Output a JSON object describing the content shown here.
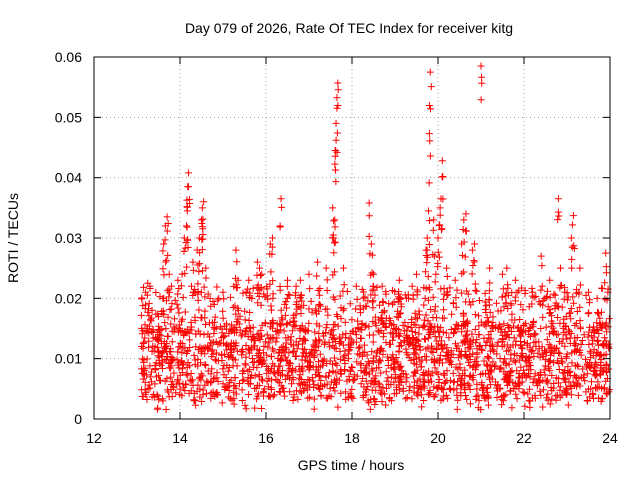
{
  "chart_data": {
    "type": "scatter",
    "title": "Day 079 of 2026, Rate Of TEC Index for receiver kitg",
    "xlabel": "GPS time / hours",
    "ylabel": "ROTI / TECUs",
    "xlim": [
      12,
      24
    ],
    "ylim": [
      0,
      0.06
    ],
    "xticks": [
      "12",
      "14",
      "16",
      "18",
      "20",
      "22",
      "24"
    ],
    "yticks": [
      "0",
      "0.01",
      "0.02",
      "0.03",
      "0.04",
      "0.05",
      "0.06"
    ],
    "grid": true,
    "marker": "plus",
    "marker_color": "#ff0000",
    "series": [
      {
        "name": "ROTI",
        "points": [
          [
            13.2,
            0.021
          ],
          [
            13.25,
            0.0225
          ],
          [
            13.3,
            0.022
          ],
          [
            13.35,
            0.018
          ],
          [
            13.5,
            0.017
          ],
          [
            13.6,
            0.02
          ],
          [
            13.62,
            0.029
          ],
          [
            13.66,
            0.032
          ],
          [
            13.7,
            0.0335
          ],
          [
            13.75,
            0.024
          ],
          [
            13.8,
            0.022
          ],
          [
            13.95,
            0.023
          ],
          [
            14.05,
            0.024
          ],
          [
            14.1,
            0.03
          ],
          [
            14.15,
            0.032
          ],
          [
            14.17,
            0.0345
          ],
          [
            14.18,
            0.0385
          ],
          [
            14.2,
            0.0408
          ],
          [
            14.3,
            0.026
          ],
          [
            14.4,
            0.028
          ],
          [
            14.45,
            0.03
          ],
          [
            14.5,
            0.033
          ],
          [
            14.52,
            0.035
          ],
          [
            14.55,
            0.036
          ],
          [
            14.6,
            0.025
          ],
          [
            14.7,
            0.02
          ],
          [
            14.8,
            0.019
          ],
          [
            15.0,
            0.021
          ],
          [
            15.3,
            0.028
          ],
          [
            15.35,
            0.023
          ],
          [
            15.6,
            0.023
          ],
          [
            15.8,
            0.026
          ],
          [
            15.85,
            0.025
          ],
          [
            15.9,
            0.024
          ],
          [
            16.1,
            0.029
          ],
          [
            16.15,
            0.03
          ],
          [
            16.35,
            0.0365
          ],
          [
            16.5,
            0.023
          ],
          [
            16.7,
            0.022
          ],
          [
            16.8,
            0.023
          ],
          [
            17.0,
            0.024
          ],
          [
            17.2,
            0.026
          ],
          [
            17.4,
            0.025
          ],
          [
            17.55,
            0.035
          ],
          [
            17.57,
            0.03
          ],
          [
            17.6,
            0.033
          ],
          [
            17.62,
            0.0445
          ],
          [
            17.63,
            0.0462
          ],
          [
            17.65,
            0.0515
          ],
          [
            17.67,
            0.0557
          ],
          [
            17.8,
            0.025
          ],
          [
            18.1,
            0.022
          ],
          [
            18.4,
            0.0358
          ],
          [
            18.45,
            0.029
          ],
          [
            18.5,
            0.024
          ],
          [
            18.7,
            0.022
          ],
          [
            19.1,
            0.023
          ],
          [
            19.4,
            0.022
          ],
          [
            19.5,
            0.024
          ],
          [
            19.7,
            0.02
          ],
          [
            19.72,
            0.028
          ],
          [
            19.75,
            0.03
          ],
          [
            19.78,
            0.0345
          ],
          [
            19.8,
            0.0473
          ],
          [
            19.82,
            0.0575
          ],
          [
            19.9,
            0.033
          ],
          [
            19.95,
            0.024
          ],
          [
            20.0,
            0.03
          ],
          [
            20.05,
            0.035
          ],
          [
            20.07,
            0.0365
          ],
          [
            20.1,
            0.0428
          ],
          [
            20.2,
            0.025
          ],
          [
            20.4,
            0.023
          ],
          [
            20.55,
            0.029
          ],
          [
            20.6,
            0.033
          ],
          [
            20.65,
            0.034
          ],
          [
            20.8,
            0.028
          ],
          [
            20.85,
            0.029
          ],
          [
            21.0,
            0.0585
          ],
          [
            21.2,
            0.025
          ],
          [
            21.5,
            0.024
          ],
          [
            21.6,
            0.025
          ],
          [
            21.8,
            0.023
          ],
          [
            22.2,
            0.021
          ],
          [
            22.4,
            0.027
          ],
          [
            22.6,
            0.023
          ],
          [
            22.8,
            0.0365
          ],
          [
            22.85,
            0.025
          ],
          [
            22.95,
            0.021
          ],
          [
            23.1,
            0.03
          ],
          [
            23.15,
            0.0337
          ],
          [
            23.3,
            0.025
          ],
          [
            23.5,
            0.021
          ],
          [
            23.7,
            0.02
          ],
          [
            23.9,
            0.0275
          ],
          [
            23.95,
            0.021
          ]
        ],
        "dense_band": {
          "x_range": [
            13.1,
            24.0
          ],
          "y_floor": 0.0015,
          "y_typical_range": [
            0.003,
            0.016
          ],
          "y_common_max": 0.022,
          "note": "dense cloud of several thousand points"
        }
      }
    ]
  }
}
